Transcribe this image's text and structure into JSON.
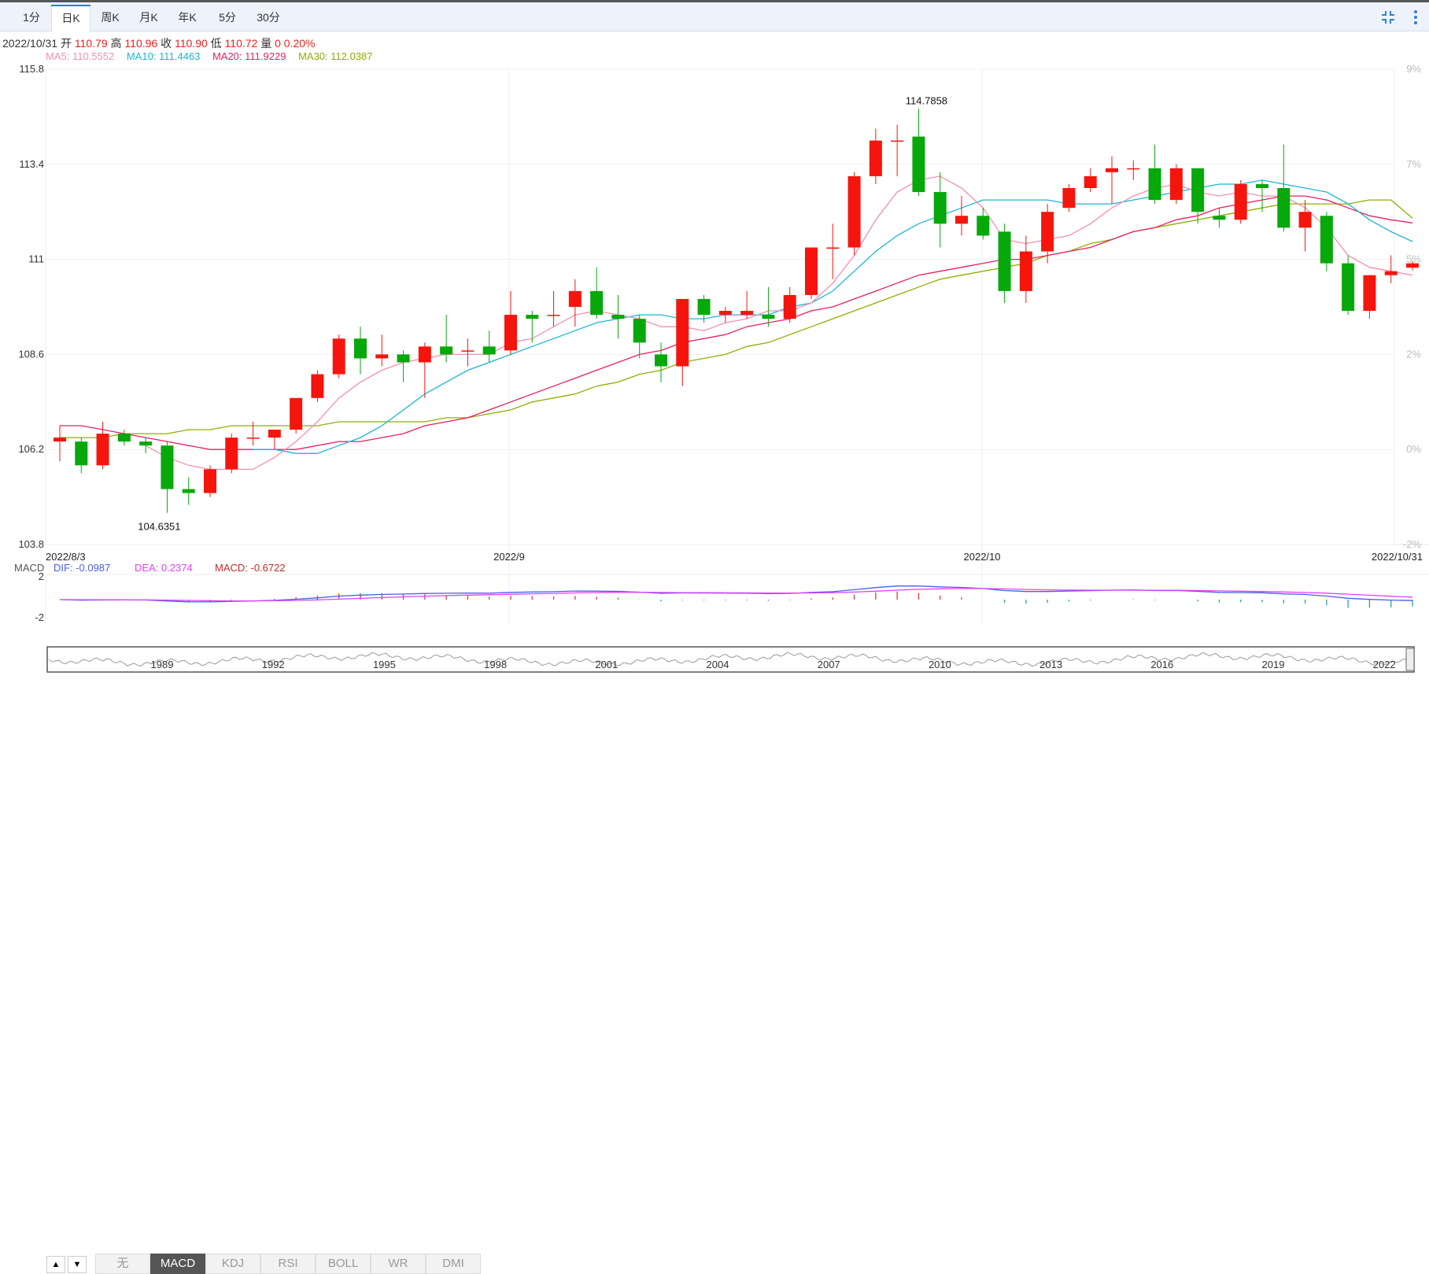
{
  "tabs": [
    {
      "label": "1分",
      "active": false
    },
    {
      "label": "日K",
      "active": true
    },
    {
      "label": "周K",
      "active": false
    },
    {
      "label": "月K",
      "active": false
    },
    {
      "label": "年K",
      "active": false
    },
    {
      "label": "5分",
      "active": false
    },
    {
      "label": "30分",
      "active": false
    }
  ],
  "toolbar": {
    "collapse_icon": "collapse-icon",
    "menu_icon": "more-vertical-icon"
  },
  "ohlc_bar": {
    "date": "2022/10/31",
    "open_label": "开",
    "open": "110.79",
    "high_label": "高",
    "high": "110.96",
    "close_label": "收",
    "close": "110.90",
    "low_label": "低",
    "low": "110.72",
    "vol_label": "量",
    "vol": "0",
    "change": "0.20%"
  },
  "ma_legend": [
    {
      "label": "MA5: 110.5552",
      "color": "#f48fb1"
    },
    {
      "label": "MA10: 111.4463",
      "color": "#1bb6d4"
    },
    {
      "label": "MA20: 111.9229",
      "color": "#e91e63"
    },
    {
      "label": "MA30: 112.0387",
      "color": "#8bb000"
    }
  ],
  "macd_legend": {
    "name": "MACD",
    "dif": "DIF: -0.0987",
    "dif_color": "#4a5ee8",
    "dea": "DEA: 0.2374",
    "dea_color": "#e040fb",
    "macd": "MACD: -0.6722",
    "macd_color": "#c62828"
  },
  "indicator_buttons": [
    {
      "label": "无",
      "active": false
    },
    {
      "label": "MACD",
      "active": true
    },
    {
      "label": "KDJ",
      "active": false
    },
    {
      "label": "RSI",
      "active": false
    },
    {
      "label": "BOLL",
      "active": false
    },
    {
      "label": "WR",
      "active": false
    },
    {
      "label": "DMI",
      "active": false
    }
  ],
  "scroll_buttons": {
    "up": "▲",
    "down": "▼"
  },
  "chart_data": {
    "type": "candlestick",
    "y_ticks": [
      "115.8",
      "113.4",
      "111",
      "108.6",
      "106.2",
      "103.8"
    ],
    "ylim": [
      103.8,
      115.8
    ],
    "pct_ticks": [
      "9%",
      "7%",
      "5%",
      "2%",
      "0%",
      "-2%"
    ],
    "x_ticks": [
      "2022/8/3",
      "2022/9",
      "2022/10",
      "2022/10/31"
    ],
    "macd_y_ticks": [
      "2",
      "-2"
    ],
    "navigator_ticks": [
      "1989",
      "1992",
      "1995",
      "1998",
      "2001",
      "2004",
      "2007",
      "2010",
      "2013",
      "2016",
      "2019",
      "2022"
    ],
    "high_label": "114.7858",
    "low_label": "104.6351",
    "candles": [
      {
        "o": 106.4,
        "h": 106.8,
        "l": 105.9,
        "c": 106.5
      },
      {
        "o": 106.4,
        "h": 106.5,
        "l": 105.6,
        "c": 105.8
      },
      {
        "o": 105.8,
        "h": 106.9,
        "l": 105.7,
        "c": 106.6
      },
      {
        "o": 106.6,
        "h": 106.7,
        "l": 106.3,
        "c": 106.4
      },
      {
        "o": 106.4,
        "h": 106.5,
        "l": 106.1,
        "c": 106.3
      },
      {
        "o": 106.3,
        "h": 106.4,
        "l": 104.6,
        "c": 105.2
      },
      {
        "o": 105.2,
        "h": 105.5,
        "l": 104.8,
        "c": 105.1
      },
      {
        "o": 105.1,
        "h": 105.8,
        "l": 105.0,
        "c": 105.7
      },
      {
        "o": 105.7,
        "h": 106.6,
        "l": 105.6,
        "c": 106.5
      },
      {
        "o": 106.5,
        "h": 106.9,
        "l": 106.3,
        "c": 106.5
      },
      {
        "o": 106.5,
        "h": 106.7,
        "l": 106.2,
        "c": 106.7
      },
      {
        "o": 106.7,
        "h": 107.5,
        "l": 106.6,
        "c": 107.5
      },
      {
        "o": 107.5,
        "h": 108.2,
        "l": 107.4,
        "c": 108.1
      },
      {
        "o": 108.1,
        "h": 109.1,
        "l": 108.0,
        "c": 109.0
      },
      {
        "o": 109.0,
        "h": 109.3,
        "l": 108.1,
        "c": 108.5
      },
      {
        "o": 108.5,
        "h": 109.1,
        "l": 108.3,
        "c": 108.6
      },
      {
        "o": 108.6,
        "h": 108.7,
        "l": 107.9,
        "c": 108.4
      },
      {
        "o": 108.4,
        "h": 108.9,
        "l": 107.5,
        "c": 108.8
      },
      {
        "o": 108.8,
        "h": 109.6,
        "l": 108.4,
        "c": 108.6
      },
      {
        "o": 108.7,
        "h": 109.0,
        "l": 108.3,
        "c": 108.7
      },
      {
        "o": 108.8,
        "h": 109.2,
        "l": 108.4,
        "c": 108.6
      },
      {
        "o": 108.7,
        "h": 110.2,
        "l": 108.6,
        "c": 109.6
      },
      {
        "o": 109.6,
        "h": 109.7,
        "l": 108.9,
        "c": 109.5
      },
      {
        "o": 109.6,
        "h": 110.2,
        "l": 109.3,
        "c": 109.6
      },
      {
        "o": 109.8,
        "h": 110.5,
        "l": 109.3,
        "c": 110.2
      },
      {
        "o": 110.2,
        "h": 110.8,
        "l": 109.5,
        "c": 109.6
      },
      {
        "o": 109.6,
        "h": 110.1,
        "l": 109.0,
        "c": 109.5
      },
      {
        "o": 109.5,
        "h": 109.6,
        "l": 108.5,
        "c": 108.9
      },
      {
        "o": 108.6,
        "h": 108.9,
        "l": 107.9,
        "c": 108.3
      },
      {
        "o": 108.3,
        "h": 110.0,
        "l": 107.8,
        "c": 110.0
      },
      {
        "o": 110.0,
        "h": 110.1,
        "l": 109.4,
        "c": 109.6
      },
      {
        "o": 109.6,
        "h": 109.8,
        "l": 109.4,
        "c": 109.7
      },
      {
        "o": 109.6,
        "h": 110.2,
        "l": 109.5,
        "c": 109.7
      },
      {
        "o": 109.6,
        "h": 110.3,
        "l": 109.3,
        "c": 109.5
      },
      {
        "o": 109.5,
        "h": 110.3,
        "l": 109.4,
        "c": 110.1
      },
      {
        "o": 110.1,
        "h": 111.3,
        "l": 110.0,
        "c": 111.3
      },
      {
        "o": 111.3,
        "h": 111.9,
        "l": 110.5,
        "c": 111.3
      },
      {
        "o": 111.3,
        "h": 113.2,
        "l": 111.1,
        "c": 113.1
      },
      {
        "o": 113.1,
        "h": 114.3,
        "l": 112.9,
        "c": 114.0
      },
      {
        "o": 114.0,
        "h": 114.4,
        "l": 113.1,
        "c": 114.0
      },
      {
        "o": 114.1,
        "h": 114.8,
        "l": 112.6,
        "c": 112.7
      },
      {
        "o": 112.7,
        "h": 113.2,
        "l": 111.3,
        "c": 111.9
      },
      {
        "o": 111.9,
        "h": 112.6,
        "l": 111.6,
        "c": 112.1
      },
      {
        "o": 112.1,
        "h": 112.3,
        "l": 111.5,
        "c": 111.6
      },
      {
        "o": 111.7,
        "h": 111.9,
        "l": 109.9,
        "c": 110.2
      },
      {
        "o": 110.2,
        "h": 111.6,
        "l": 109.9,
        "c": 111.2
      },
      {
        "o": 111.2,
        "h": 112.4,
        "l": 110.9,
        "c": 112.2
      },
      {
        "o": 112.3,
        "h": 112.9,
        "l": 112.2,
        "c": 112.8
      },
      {
        "o": 112.8,
        "h": 113.3,
        "l": 112.7,
        "c": 113.1
      },
      {
        "o": 113.2,
        "h": 113.6,
        "l": 112.4,
        "c": 113.3
      },
      {
        "o": 113.3,
        "h": 113.5,
        "l": 113.0,
        "c": 113.3
      },
      {
        "o": 113.3,
        "h": 113.9,
        "l": 112.4,
        "c": 112.5
      },
      {
        "o": 112.5,
        "h": 113.4,
        "l": 112.4,
        "c": 113.3
      },
      {
        "o": 113.3,
        "h": 113.3,
        "l": 111.9,
        "c": 112.2
      },
      {
        "o": 112.1,
        "h": 112.3,
        "l": 111.8,
        "c": 112.0
      },
      {
        "o": 112.0,
        "h": 113.0,
        "l": 111.9,
        "c": 112.9
      },
      {
        "o": 112.9,
        "h": 113.0,
        "l": 112.2,
        "c": 112.8
      },
      {
        "o": 112.8,
        "h": 113.9,
        "l": 111.7,
        "c": 111.8
      },
      {
        "o": 111.8,
        "h": 112.5,
        "l": 111.2,
        "c": 112.2
      },
      {
        "o": 112.1,
        "h": 112.2,
        "l": 110.7,
        "c": 110.9
      },
      {
        "o": 110.9,
        "h": 111.1,
        "l": 109.6,
        "c": 109.7
      },
      {
        "o": 109.7,
        "h": 110.6,
        "l": 109.5,
        "c": 110.6
      },
      {
        "o": 110.6,
        "h": 111.1,
        "l": 110.4,
        "c": 110.7
      },
      {
        "o": 110.79,
        "h": 110.96,
        "l": 110.72,
        "c": 110.9
      }
    ],
    "ma5": [
      null,
      null,
      null,
      null,
      106.3,
      106.0,
      105.8,
      105.7,
      105.7,
      105.7,
      106.0,
      106.4,
      106.9,
      107.5,
      107.9,
      108.2,
      108.4,
      108.5,
      108.6,
      108.6,
      108.6,
      108.9,
      109.0,
      109.3,
      109.6,
      109.7,
      109.6,
      109.5,
      109.3,
      109.3,
      109.2,
      109.4,
      109.5,
      109.7,
      109.7,
      109.9,
      110.4,
      111.1,
      112.0,
      112.7,
      113.0,
      113.1,
      112.8,
      112.3,
      111.5,
      111.4,
      111.5,
      111.6,
      111.9,
      112.3,
      112.6,
      112.8,
      112.9,
      112.7,
      112.6,
      112.7,
      112.6,
      112.6,
      112.3,
      111.8,
      111.1,
      110.8,
      110.7,
      110.6
    ],
    "ma10": [
      null,
      null,
      null,
      null,
      null,
      null,
      null,
      null,
      null,
      106.2,
      106.2,
      106.1,
      106.1,
      106.3,
      106.5,
      106.8,
      107.2,
      107.6,
      107.9,
      108.2,
      108.4,
      108.6,
      108.8,
      109.0,
      109.2,
      109.4,
      109.5,
      109.6,
      109.6,
      109.5,
      109.5,
      109.6,
      109.6,
      109.6,
      109.8,
      109.9,
      110.2,
      110.7,
      111.2,
      111.6,
      111.9,
      112.1,
      112.3,
      112.5,
      112.5,
      112.5,
      112.5,
      112.4,
      112.4,
      112.4,
      112.5,
      112.6,
      112.7,
      112.8,
      112.9,
      112.9,
      113.0,
      112.9,
      112.8,
      112.7,
      112.4,
      112.0,
      111.7,
      111.45
    ],
    "ma20": [
      106.8,
      106.8,
      106.7,
      106.6,
      106.5,
      106.4,
      106.3,
      106.2,
      106.2,
      106.2,
      106.2,
      106.2,
      106.3,
      106.4,
      106.4,
      106.5,
      106.6,
      106.8,
      106.9,
      107.0,
      107.2,
      107.4,
      107.6,
      107.8,
      108.0,
      108.2,
      108.4,
      108.6,
      108.7,
      108.9,
      109.0,
      109.1,
      109.3,
      109.4,
      109.5,
      109.7,
      109.8,
      110.0,
      110.2,
      110.4,
      110.6,
      110.7,
      110.8,
      110.9,
      111.0,
      111.0,
      111.1,
      111.2,
      111.3,
      111.5,
      111.7,
      111.8,
      112.0,
      112.1,
      112.3,
      112.4,
      112.5,
      112.6,
      112.6,
      112.5,
      112.3,
      112.1,
      112.0,
      111.92
    ],
    "ma30": [
      106.5,
      106.5,
      106.5,
      106.6,
      106.6,
      106.6,
      106.7,
      106.7,
      106.8,
      106.8,
      106.8,
      106.8,
      106.8,
      106.9,
      106.9,
      106.9,
      106.9,
      106.9,
      107.0,
      107.0,
      107.1,
      107.2,
      107.4,
      107.5,
      107.6,
      107.8,
      107.9,
      108.1,
      108.2,
      108.4,
      108.5,
      108.6,
      108.8,
      108.9,
      109.1,
      109.3,
      109.5,
      109.7,
      109.9,
      110.1,
      110.3,
      110.5,
      110.6,
      110.7,
      110.8,
      110.9,
      111.1,
      111.2,
      111.4,
      111.5,
      111.7,
      111.8,
      111.9,
      112.0,
      112.1,
      112.2,
      112.3,
      112.4,
      112.4,
      112.4,
      112.4,
      112.5,
      112.5,
      112.04
    ],
    "macd_ylim": [
      -2,
      2
    ]
  }
}
